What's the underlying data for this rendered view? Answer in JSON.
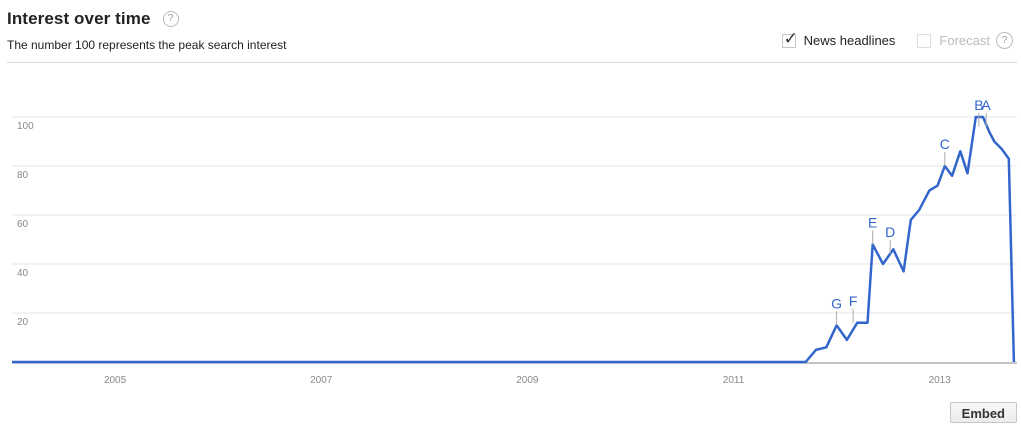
{
  "header": {
    "title": "Interest over time",
    "help_glyph": "?",
    "subtitle": "The number 100 represents the peak search interest"
  },
  "controls": {
    "news_headlines_label": "News headlines",
    "news_headlines_checked": true,
    "forecast_label": "Forecast",
    "forecast_checked": false
  },
  "embed_label": "Embed",
  "colors": {
    "line": "#3366cc",
    "grid": "#e5e5e5",
    "axis": "#888888",
    "tick_text": "#888888",
    "annotation": "#3366cc"
  },
  "chart_data": {
    "type": "line",
    "title": "Interest over time",
    "subtitle": "The number 100 represents the peak search interest",
    "xlim": [
      2004.0,
      2013.75
    ],
    "ylim": [
      0,
      100
    ],
    "x_ticks": [
      2005,
      2007,
      2009,
      2011,
      2013
    ],
    "x_tick_labels": [
      "2005",
      "2007",
      "2009",
      "2011",
      "2013"
    ],
    "y_ticks": [
      20,
      40,
      60,
      80,
      100
    ],
    "y_tick_labels": [
      "20",
      "40",
      "60",
      "80",
      "100"
    ],
    "grid": true,
    "legend": "none",
    "series": [
      {
        "x": [
          2004.0,
          2011.7,
          2011.8,
          2011.9,
          2012.0,
          2012.1,
          2012.2,
          2012.3,
          2012.35,
          2012.45,
          2012.55,
          2012.65,
          2012.72,
          2012.8,
          2012.9,
          2012.98,
          2013.05,
          2013.12,
          2013.2,
          2013.27,
          2013.35,
          2013.42,
          2013.48,
          2013.53,
          2013.6,
          2013.67,
          2013.72
        ],
        "y": [
          0,
          0,
          5,
          6,
          15,
          9,
          16,
          16,
          48,
          40,
          46,
          37,
          58,
          62,
          70,
          72,
          80,
          76,
          86,
          77,
          100,
          100,
          94,
          90,
          87,
          83,
          0
        ]
      }
    ],
    "annotations": [
      {
        "label": "G",
        "x": 2012.0,
        "y": 15
      },
      {
        "label": "F",
        "x": 2012.16,
        "y": 16
      },
      {
        "label": "E",
        "x": 2012.35,
        "y": 48
      },
      {
        "label": "D",
        "x": 2012.52,
        "y": 44
      },
      {
        "label": "C",
        "x": 2013.05,
        "y": 80
      },
      {
        "label": "B",
        "x": 2013.38,
        "y": 96
      },
      {
        "label": "A",
        "x": 2013.45,
        "y": 96
      }
    ]
  }
}
